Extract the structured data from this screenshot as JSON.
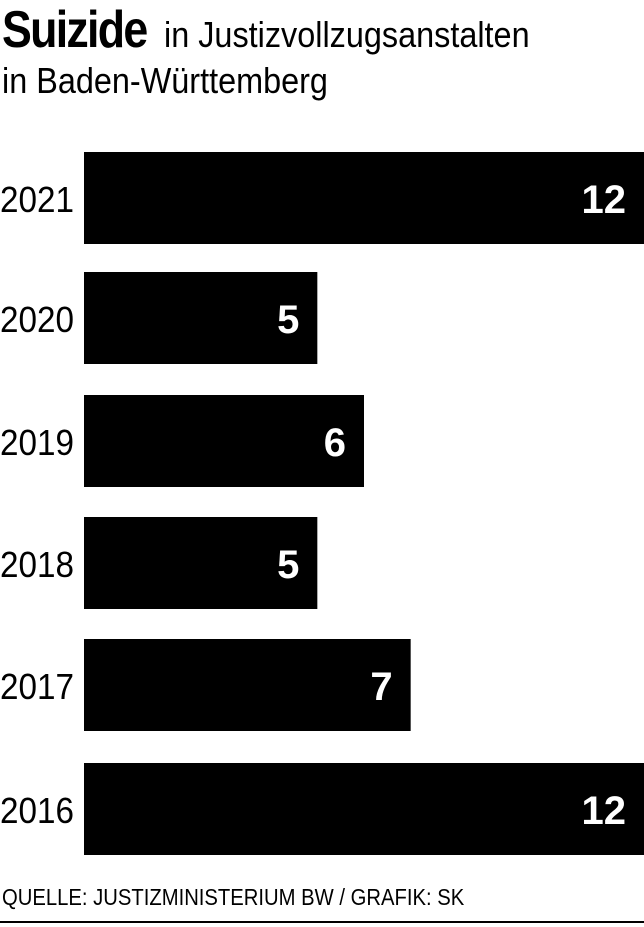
{
  "title": {
    "bold": "Suizide",
    "rest": "in Justizvollzugsanstalten",
    "line2": "in Baden-Württemberg"
  },
  "source": "QUELLE: JUSTIZMINISTERIUM BW / GRAFIK: SK",
  "chart_data": {
    "type": "bar",
    "orientation": "horizontal",
    "categories": [
      "2021",
      "2020",
      "2019",
      "2018",
      "2017",
      "2016"
    ],
    "values": [
      12,
      5,
      6,
      5,
      7,
      12
    ],
    "xlim": [
      0,
      12
    ],
    "grid": false,
    "legend": "none",
    "bar_color": "#000000",
    "label_color": "#ffffff"
  }
}
